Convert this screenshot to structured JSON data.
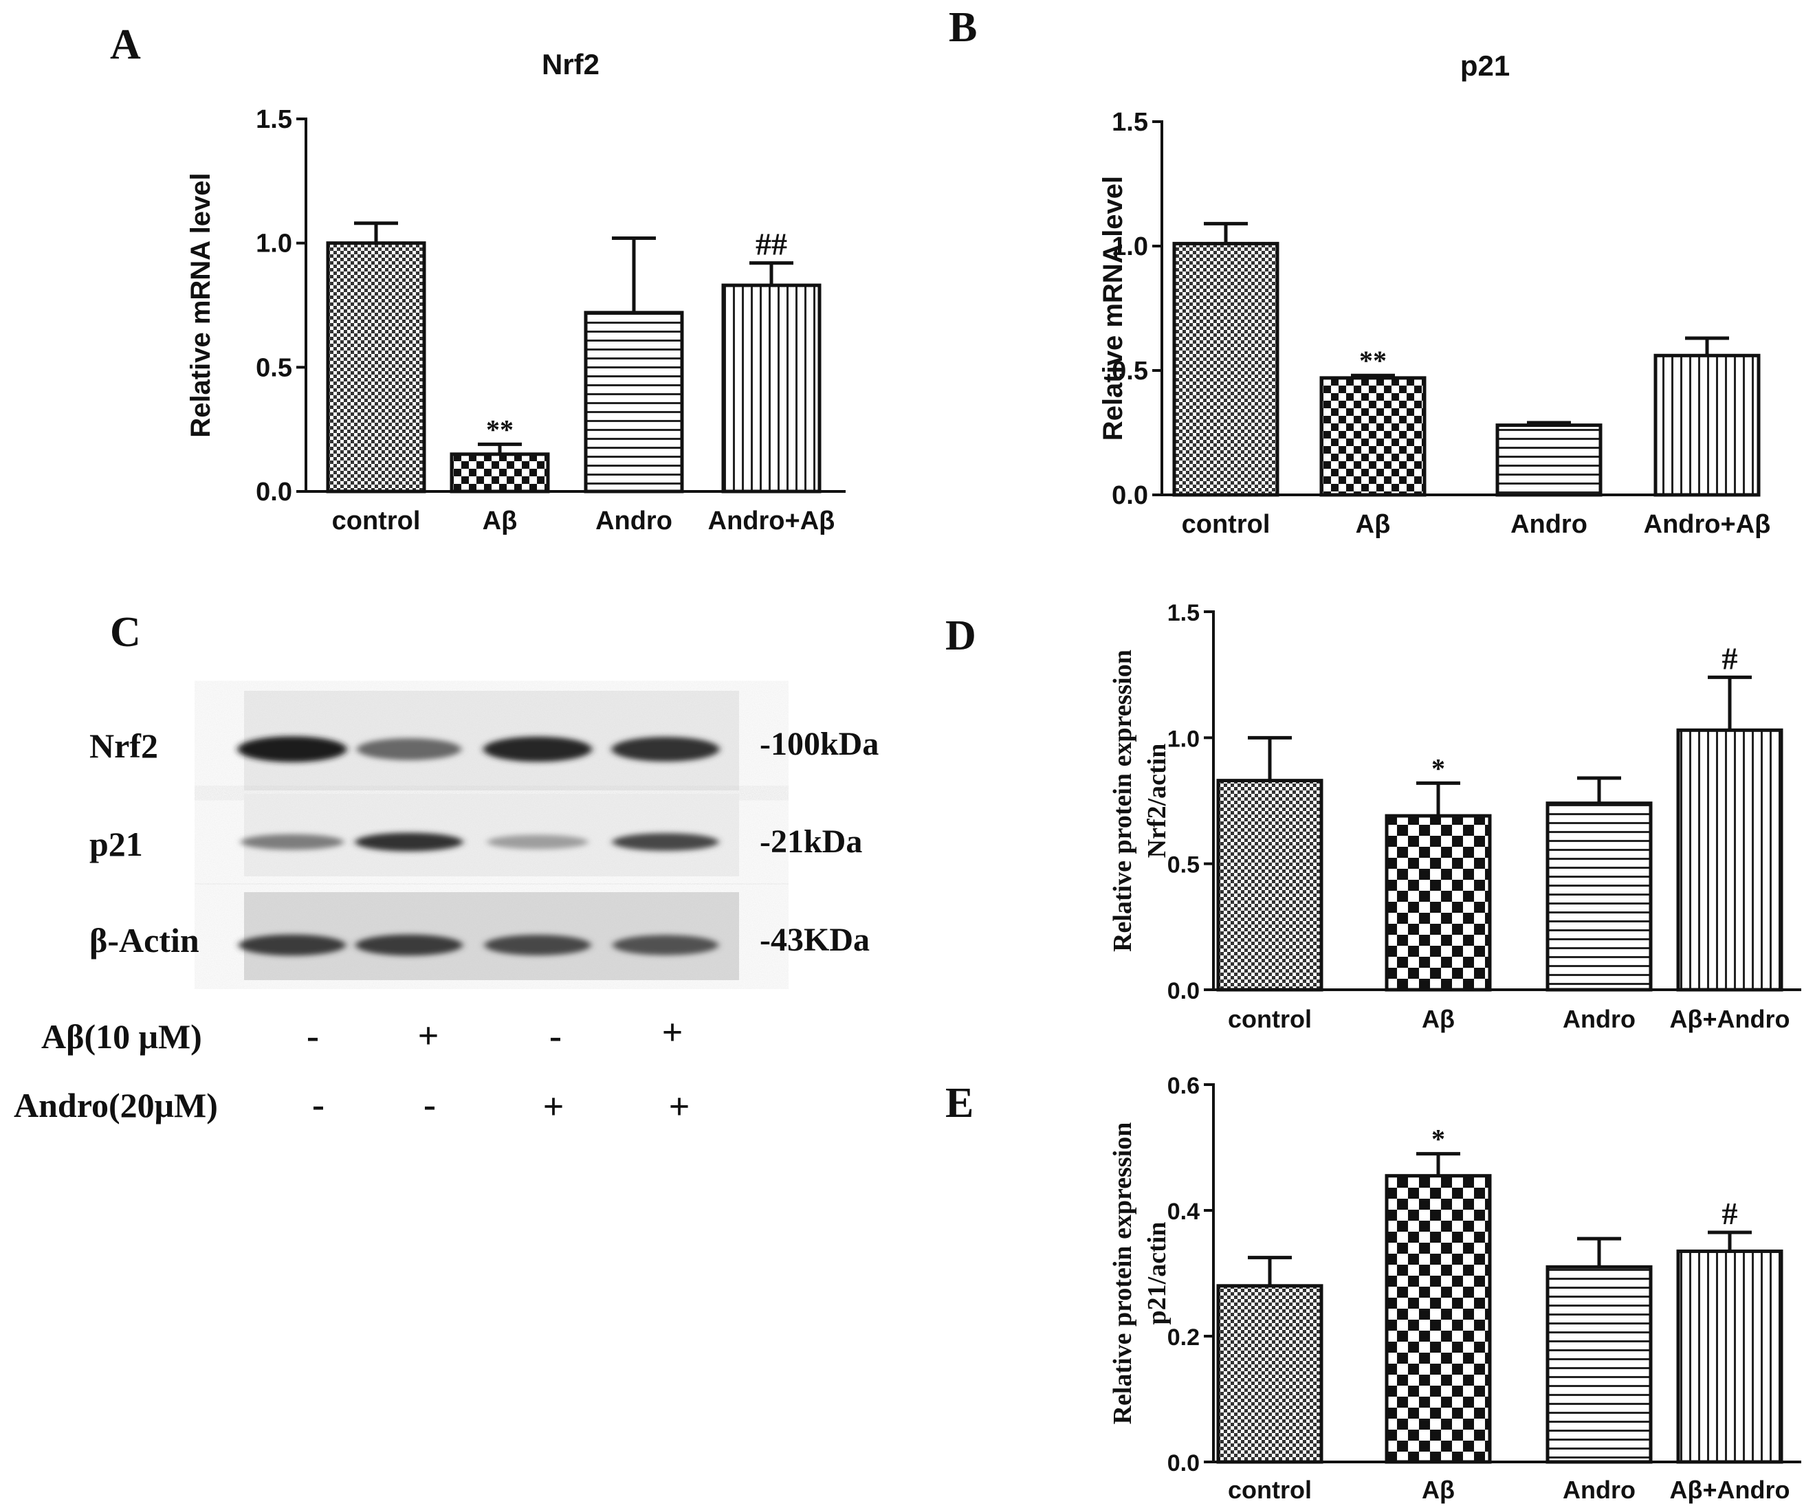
{
  "panel_labels": {
    "A": "A",
    "B": "B",
    "C": "C",
    "D": "D",
    "E": "E"
  },
  "chart_data": [
    {
      "id": "A",
      "type": "bar",
      "title": "Nrf2",
      "ylabel": "Relative mRNA level",
      "xlabel": "",
      "ylim": [
        0,
        1.5
      ],
      "yticks": [
        "0.0",
        "0.5",
        "1.0",
        "1.5"
      ],
      "categories": [
        "control",
        "Aβ",
        "Andro",
        "Andro+Aβ"
      ],
      "values": [
        1.0,
        0.15,
        0.72,
        0.83
      ],
      "errors": [
        0.08,
        0.04,
        0.3,
        0.09
      ],
      "annotations": [
        "",
        "**",
        "",
        "##"
      ],
      "patterns": [
        "checker_fine",
        "checker_small",
        "hlines",
        "vlines"
      ]
    },
    {
      "id": "B",
      "type": "bar",
      "title": "p21",
      "ylabel": "Relative mRNA level",
      "xlabel": "",
      "ylim": [
        0,
        1.5
      ],
      "yticks": [
        "0.0",
        "0.5",
        "1.0",
        "1.5"
      ],
      "categories": [
        "control",
        "Aβ",
        "Andro",
        "Andro+Aβ"
      ],
      "values": [
        1.01,
        0.47,
        0.28,
        0.56
      ],
      "errors": [
        0.08,
        0.01,
        0.01,
        0.07
      ],
      "annotations": [
        "",
        "**",
        "",
        ""
      ],
      "patterns": [
        "checker_fine",
        "checker_small",
        "hlines",
        "vlines"
      ]
    },
    {
      "id": "D",
      "type": "bar",
      "title": "",
      "ylabel": "Relative protein expression",
      "ylabel2": "Nrf2/actin",
      "xlabel": "",
      "ylim": [
        0,
        1.5
      ],
      "yticks": [
        "0.0",
        "0.5",
        "1.0",
        "1.5"
      ],
      "categories": [
        "control",
        "Aβ",
        "Andro",
        "Aβ+Andro"
      ],
      "values": [
        0.83,
        0.69,
        0.74,
        1.03
      ],
      "errors": [
        0.17,
        0.13,
        0.1,
        0.21
      ],
      "annotations": [
        "",
        "*",
        "",
        "#"
      ],
      "patterns": [
        "checker_fine",
        "checker_big",
        "hlines",
        "vlines"
      ]
    },
    {
      "id": "E",
      "type": "bar",
      "title": "",
      "ylabel": "Relative protein expression",
      "ylabel2": "p21/actin",
      "xlabel": "",
      "ylim": [
        0,
        0.6
      ],
      "yticks": [
        "0.0",
        "0.2",
        "0.4",
        "0.6"
      ],
      "categories": [
        "control",
        "Aβ",
        "Andro",
        "Aβ+Andro"
      ],
      "values": [
        0.28,
        0.455,
        0.31,
        0.335
      ],
      "errors": [
        0.045,
        0.035,
        0.045,
        0.03
      ],
      "annotations": [
        "",
        "*",
        "",
        "#"
      ],
      "patterns": [
        "checker_fine",
        "checker_big",
        "hlines",
        "vlines"
      ]
    }
  ],
  "blot": {
    "rows": [
      {
        "name": "Nrf2",
        "size": "-100kDa",
        "intensities": [
          0.95,
          0.6,
          0.9,
          0.85
        ]
      },
      {
        "name": "p21",
        "size": "-21kDa",
        "intensities": [
          0.5,
          0.85,
          0.35,
          0.75
        ]
      },
      {
        "name": "β-Actin",
        "size": "-43KDa",
        "intensities": [
          0.8,
          0.8,
          0.75,
          0.7
        ]
      }
    ],
    "treatments": [
      {
        "label": "Aβ(10 μM)",
        "signs": [
          "-",
          "+",
          "-",
          "+"
        ]
      },
      {
        "label": "Andro(20μM)",
        "signs": [
          "-",
          "-",
          "+",
          "+"
        ]
      }
    ]
  }
}
